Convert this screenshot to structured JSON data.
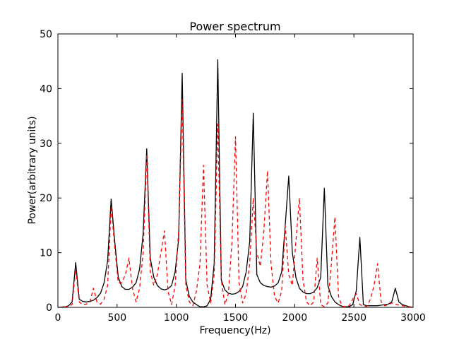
{
  "chart_data": {
    "type": "line",
    "title": "Power spectrum",
    "xlabel": "Frequency(Hz)",
    "ylabel": "Power(arbitrary units)",
    "xlim": [
      0,
      3000
    ],
    "ylim": [
      0,
      50
    ],
    "xticks": [
      "0",
      "500",
      "1000",
      "1500",
      "2000",
      "2500",
      "3000"
    ],
    "yticks": [
      "0",
      "10",
      "20",
      "30",
      "40",
      "50"
    ],
    "grid": false,
    "legend": "none",
    "series": [
      {
        "style": "solid",
        "color": "#000000",
        "x": [
          0,
          60,
          90,
          120,
          150,
          180,
          210,
          240,
          270,
          300,
          330,
          360,
          390,
          420,
          450,
          480,
          510,
          540,
          570,
          600,
          630,
          660,
          690,
          720,
          750,
          780,
          810,
          840,
          870,
          900,
          930,
          960,
          990,
          1020,
          1050,
          1080,
          1110,
          1140,
          1170,
          1200,
          1230,
          1260,
          1290,
          1320,
          1350,
          1380,
          1410,
          1440,
          1470,
          1500,
          1530,
          1560,
          1590,
          1620,
          1650,
          1680,
          1710,
          1740,
          1770,
          1800,
          1830,
          1860,
          1890,
          1920,
          1950,
          1980,
          2010,
          2040,
          2070,
          2100,
          2130,
          2160,
          2190,
          2220,
          2250,
          2280,
          2310,
          2340,
          2370,
          2400,
          2430,
          2460,
          2490,
          2520,
          2550,
          2580,
          2610,
          2640,
          2670,
          2700,
          2730,
          2760,
          2790,
          2820,
          2850,
          2880,
          2910,
          2940,
          2970,
          3000
        ],
        "y": [
          0,
          0.1,
          0.3,
          1.0,
          8.2,
          1.5,
          1.1,
          1.0,
          1.1,
          1.3,
          1.8,
          2.6,
          4.5,
          8.5,
          19.8,
          12,
          5.5,
          3.8,
          3.3,
          3.3,
          3.7,
          4.5,
          7.0,
          13.5,
          29.0,
          9.0,
          5.5,
          4.0,
          3.4,
          3.2,
          3.4,
          4.0,
          6.5,
          12.5,
          42.8,
          5.0,
          2.0,
          1.0,
          0.5,
          0.1,
          0.1,
          0.3,
          1.5,
          8.0,
          45.3,
          5.0,
          3.2,
          2.6,
          2.4,
          2.5,
          2.9,
          3.8,
          6.5,
          12.0,
          35.5,
          6.0,
          4.5,
          4.0,
          3.8,
          3.7,
          3.9,
          4.5,
          6.5,
          15.0,
          24.0,
          10.0,
          5.5,
          3.5,
          2.8,
          2.5,
          2.5,
          2.8,
          3.6,
          5.5,
          21.8,
          4.0,
          2.0,
          1.0,
          0.5,
          0.2,
          0.1,
          0.1,
          0.5,
          3.0,
          12.8,
          0.5,
          0.3,
          0.3,
          0.3,
          0.3,
          0.4,
          0.5,
          0.6,
          1.0,
          3.5,
          1.0,
          0.5,
          0.3,
          0.1,
          0.0
        ]
      },
      {
        "style": "dashed",
        "color": "#ff0000",
        "x": [
          0,
          60,
          90,
          120,
          150,
          180,
          210,
          240,
          270,
          300,
          330,
          360,
          390,
          420,
          450,
          480,
          510,
          540,
          570,
          600,
          630,
          660,
          690,
          720,
          750,
          780,
          810,
          840,
          870,
          900,
          930,
          960,
          990,
          1020,
          1050,
          1080,
          1110,
          1140,
          1170,
          1200,
          1230,
          1260,
          1290,
          1320,
          1350,
          1380,
          1410,
          1440,
          1470,
          1500,
          1530,
          1560,
          1590,
          1620,
          1650,
          1680,
          1710,
          1740,
          1770,
          1800,
          1830,
          1860,
          1890,
          1920,
          1950,
          1980,
          2010,
          2040,
          2070,
          2100,
          2130,
          2160,
          2190,
          2220,
          2250,
          2280,
          2310,
          2340,
          2370,
          2400,
          2430,
          2460,
          2490,
          2520,
          2550,
          2580,
          2610,
          2640,
          2670,
          2700,
          2730,
          2760,
          2790,
          2820,
          2850,
          2880,
          2910,
          2940,
          2970,
          3000
        ],
        "y": [
          0,
          0.1,
          0.2,
          0.5,
          7.0,
          1.0,
          0.5,
          0.6,
          1.0,
          3.5,
          1.0,
          0.6,
          1.5,
          4.0,
          18.5,
          11.0,
          4.5,
          4.5,
          6.0,
          9.0,
          3.5,
          1.0,
          3.5,
          10.0,
          28.0,
          6.5,
          4.0,
          6.0,
          10.0,
          14.0,
          3.0,
          0.5,
          4.0,
          14.0,
          38.0,
          4.0,
          1.0,
          0.3,
          3.0,
          8.0,
          26.0,
          4.0,
          0.8,
          6.0,
          33.5,
          5.0,
          0.5,
          2.5,
          12.0,
          31.2,
          4.5,
          0.8,
          2.5,
          8.0,
          20.0,
          10.0,
          7.5,
          14.0,
          25.0,
          8.0,
          2.0,
          0.8,
          3.0,
          15.0,
          6.0,
          4.0,
          12.0,
          20.0,
          5.0,
          1.0,
          0.3,
          1.0,
          9.0,
          0.5,
          0.1,
          0.8,
          8.0,
          16.5,
          2.0,
          0.2,
          0.1,
          0.3,
          1.5,
          2.5,
          0.5,
          0.2,
          0.2,
          1.5,
          4.0,
          8.0,
          1.0,
          0.3,
          0.5,
          0.8,
          0.6,
          0.4,
          0.3,
          0.2,
          0.1,
          0.0
        ]
      }
    ]
  }
}
